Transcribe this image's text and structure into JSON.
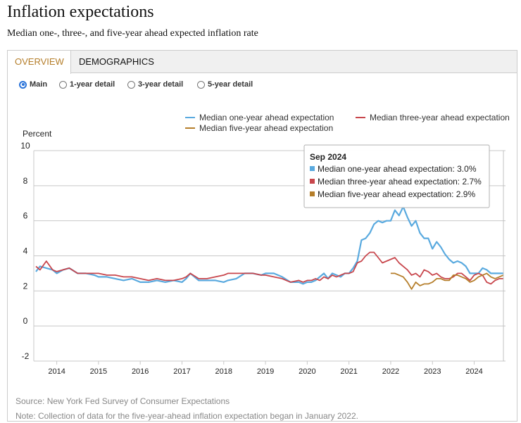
{
  "header": {
    "title": "Inflation expectations",
    "subtitle": "Median one-, three-, and five-year ahead expected inflation rate"
  },
  "tabs": [
    {
      "label": "OVERVIEW",
      "active": true
    },
    {
      "label": "DEMOGRAPHICS",
      "active": false
    }
  ],
  "radios": [
    {
      "label": "Main",
      "selected": true
    },
    {
      "label": "1-year detail",
      "selected": false
    },
    {
      "label": "3-year detail",
      "selected": false
    },
    {
      "label": "5-year detail",
      "selected": false
    }
  ],
  "footer": {
    "source": "Source: New York Fed Survey of Consumer Expectations",
    "note": "Note: Collection of data for the five-year-ahead inflation expectation began in January 2022."
  },
  "tooltip": {
    "title": "Sep 2024",
    "rows": [
      "Median one-year ahead expectation: 3.0%",
      "Median three-year ahead expectation: 2.7%",
      "Median five-year ahead expectation: 2.9%"
    ]
  },
  "chart_data": {
    "type": "line",
    "title": "",
    "ylabel": "Percent",
    "xlabel": "",
    "ylim": [
      -2,
      10
    ],
    "yticks": [
      "10",
      "8",
      "6",
      "4",
      "2",
      "0",
      "-2"
    ],
    "xticks": [
      "2014",
      "2015",
      "2016",
      "2017",
      "2018",
      "2019",
      "2020",
      "2021",
      "2022",
      "2023",
      "2024"
    ],
    "x_range": [
      2013.45,
      2024.75
    ],
    "legend_position": "top-right",
    "series": [
      {
        "name": "Median one-year ahead expectation",
        "color": "#5aaadf",
        "x": [
          2013.5,
          2013.6,
          2013.75,
          2013.9,
          2014.0,
          2014.15,
          2014.3,
          2014.5,
          2014.7,
          2014.9,
          2015.0,
          2015.2,
          2015.4,
          2015.6,
          2015.8,
          2016.0,
          2016.2,
          2016.4,
          2016.6,
          2016.8,
          2017.0,
          2017.1,
          2017.2,
          2017.4,
          2017.6,
          2017.8,
          2018.0,
          2018.1,
          2018.3,
          2018.5,
          2018.7,
          2018.9,
          2019.0,
          2019.2,
          2019.4,
          2019.6,
          2019.8,
          2019.9,
          2020.0,
          2020.1,
          2020.2,
          2020.3,
          2020.4,
          2020.5,
          2020.6,
          2020.7,
          2020.8,
          2020.9,
          2021.0,
          2021.1,
          2021.2,
          2021.3,
          2021.4,
          2021.5,
          2021.6,
          2021.7,
          2021.8,
          2021.9,
          2022.0,
          2022.1,
          2022.2,
          2022.3,
          2022.4,
          2022.5,
          2022.6,
          2022.7,
          2022.8,
          2022.9,
          2023.0,
          2023.1,
          2023.2,
          2023.3,
          2023.4,
          2023.5,
          2023.6,
          2023.7,
          2023.8,
          2023.9,
          2024.0,
          2024.1,
          2024.2,
          2024.3,
          2024.4,
          2024.5,
          2024.6,
          2024.7
        ],
        "values": [
          3.1,
          3.4,
          3.3,
          3.2,
          3.0,
          3.2,
          3.3,
          3.0,
          3.0,
          2.9,
          2.8,
          2.8,
          2.7,
          2.6,
          2.7,
          2.5,
          2.5,
          2.6,
          2.5,
          2.6,
          2.5,
          2.7,
          3.0,
          2.6,
          2.6,
          2.6,
          2.5,
          2.6,
          2.7,
          3.0,
          3.0,
          2.9,
          3.0,
          3.0,
          2.8,
          2.5,
          2.5,
          2.4,
          2.5,
          2.5,
          2.6,
          2.8,
          3.0,
          2.7,
          3.0,
          2.9,
          2.8,
          3.0,
          3.0,
          3.3,
          3.7,
          4.9,
          5.0,
          5.3,
          5.8,
          6.0,
          5.9,
          6.0,
          6.0,
          6.6,
          6.3,
          6.8,
          6.2,
          5.7,
          6.0,
          5.3,
          5.0,
          5.0,
          4.4,
          4.8,
          4.5,
          4.1,
          3.8,
          3.6,
          3.7,
          3.6,
          3.4,
          3.0,
          3.0,
          3.0,
          3.3,
          3.2,
          3.0,
          3.0,
          3.0,
          3.0
        ]
      },
      {
        "name": "Median three-year ahead expectation",
        "color": "#c8464c",
        "x": [
          2013.5,
          2013.6,
          2013.75,
          2013.9,
          2014.0,
          2014.15,
          2014.3,
          2014.5,
          2014.7,
          2014.9,
          2015.0,
          2015.2,
          2015.4,
          2015.6,
          2015.8,
          2016.0,
          2016.2,
          2016.4,
          2016.6,
          2016.8,
          2017.0,
          2017.1,
          2017.2,
          2017.4,
          2017.6,
          2017.8,
          2018.0,
          2018.1,
          2018.3,
          2018.5,
          2018.7,
          2018.9,
          2019.0,
          2019.2,
          2019.4,
          2019.6,
          2019.8,
          2019.9,
          2020.0,
          2020.1,
          2020.2,
          2020.3,
          2020.4,
          2020.5,
          2020.6,
          2020.7,
          2020.8,
          2020.9,
          2021.0,
          2021.1,
          2021.2,
          2021.3,
          2021.4,
          2021.5,
          2021.6,
          2021.7,
          2021.8,
          2021.9,
          2022.0,
          2022.1,
          2022.2,
          2022.3,
          2022.4,
          2022.5,
          2022.6,
          2022.7,
          2022.8,
          2022.9,
          2023.0,
          2023.1,
          2023.2,
          2023.3,
          2023.4,
          2023.5,
          2023.6,
          2023.7,
          2023.8,
          2023.9,
          2024.0,
          2024.1,
          2024.2,
          2024.3,
          2024.4,
          2024.5,
          2024.6,
          2024.7
        ],
        "values": [
          3.4,
          3.2,
          3.7,
          3.2,
          3.1,
          3.2,
          3.3,
          3.0,
          3.0,
          3.0,
          3.0,
          2.9,
          2.9,
          2.8,
          2.8,
          2.7,
          2.6,
          2.7,
          2.6,
          2.6,
          2.7,
          2.8,
          3.0,
          2.7,
          2.7,
          2.8,
          2.9,
          3.0,
          3.0,
          3.0,
          3.0,
          2.9,
          2.9,
          2.8,
          2.7,
          2.5,
          2.6,
          2.5,
          2.6,
          2.6,
          2.7,
          2.6,
          2.8,
          2.7,
          2.9,
          2.8,
          2.9,
          3.0,
          3.0,
          3.1,
          3.6,
          3.7,
          4.0,
          4.2,
          4.2,
          3.9,
          3.6,
          3.7,
          3.8,
          3.9,
          3.6,
          3.4,
          3.2,
          2.9,
          3.0,
          2.8,
          3.2,
          3.1,
          2.9,
          3.0,
          2.8,
          2.7,
          2.7,
          2.8,
          3.0,
          3.0,
          2.8,
          2.6,
          2.9,
          3.0,
          2.9,
          2.5,
          2.4,
          2.6,
          2.7,
          2.7
        ]
      },
      {
        "name": "Median five-year ahead expectation",
        "color": "#b57e2a",
        "x": [
          2022.0,
          2022.1,
          2022.2,
          2022.3,
          2022.4,
          2022.5,
          2022.6,
          2022.7,
          2022.8,
          2022.9,
          2023.0,
          2023.1,
          2023.2,
          2023.3,
          2023.4,
          2023.5,
          2023.6,
          2023.7,
          2023.8,
          2023.9,
          2024.0,
          2024.1,
          2024.2,
          2024.3,
          2024.4,
          2024.5,
          2024.6,
          2024.7
        ],
        "values": [
          3.0,
          3.0,
          2.9,
          2.8,
          2.5,
          2.1,
          2.5,
          2.3,
          2.4,
          2.4,
          2.5,
          2.7,
          2.7,
          2.6,
          2.6,
          2.9,
          2.9,
          2.8,
          2.7,
          2.5,
          2.6,
          2.8,
          2.9,
          3.0,
          2.8,
          2.7,
          2.8,
          2.9
        ]
      }
    ]
  }
}
